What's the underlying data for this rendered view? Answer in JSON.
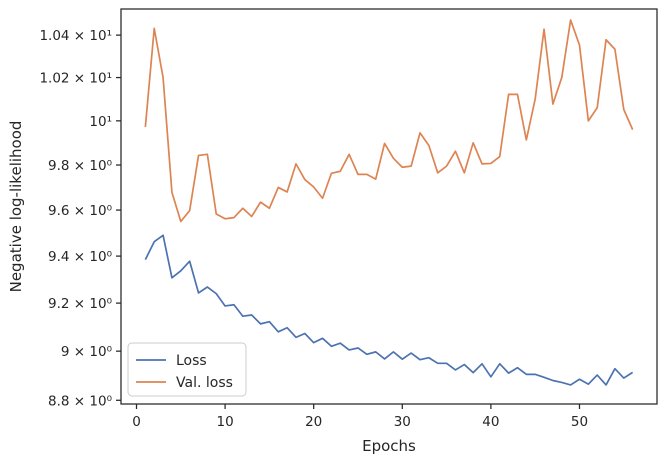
{
  "chart_data": {
    "type": "line",
    "xlabel": "Epochs",
    "ylabel": "Negative log-likelihood",
    "xlim": [
      -1.75,
      58.75
    ],
    "ylim": [
      8.785,
      10.525
    ],
    "yscale": "log",
    "grid": false,
    "legend_position": "lower-left",
    "x_ticks": [
      0,
      10,
      20,
      30,
      40,
      50
    ],
    "y_ticks": [
      {
        "value": 8.8,
        "label": "8.8 × 10⁰"
      },
      {
        "value": 9.0,
        "label": "9 × 10⁰"
      },
      {
        "value": 9.2,
        "label": "9.2 × 10⁰"
      },
      {
        "value": 9.4,
        "label": "9.4 × 10⁰"
      },
      {
        "value": 9.6,
        "label": "9.6 × 10⁰"
      },
      {
        "value": 9.8,
        "label": "9.8 × 10⁰"
      },
      {
        "value": 10.0,
        "label": "10¹"
      },
      {
        "value": 10.2,
        "label": "1.02 × 10¹"
      },
      {
        "value": 10.4,
        "label": "1.04 × 10¹"
      }
    ],
    "x": [
      1,
      2,
      3,
      4,
      5,
      6,
      7,
      8,
      9,
      10,
      11,
      12,
      13,
      14,
      15,
      16,
      17,
      18,
      19,
      20,
      21,
      22,
      23,
      24,
      25,
      26,
      27,
      28,
      29,
      30,
      31,
      32,
      33,
      34,
      35,
      36,
      37,
      38,
      39,
      40,
      41,
      42,
      43,
      44,
      45,
      46,
      47,
      48,
      49,
      50,
      51,
      52,
      53,
      54,
      55,
      56
    ],
    "series": [
      {
        "name": "Loss",
        "color": "#4c72b0",
        "values": [
          9.385,
          9.462,
          9.49,
          9.307,
          9.337,
          9.378,
          9.243,
          9.268,
          9.24,
          9.188,
          9.193,
          9.145,
          9.15,
          9.113,
          9.122,
          9.08,
          9.097,
          9.057,
          9.073,
          9.035,
          9.053,
          9.02,
          9.033,
          9.005,
          9.013,
          8.987,
          8.997,
          8.968,
          8.997,
          8.967,
          8.992,
          8.965,
          8.973,
          8.95,
          8.95,
          8.923,
          8.945,
          8.912,
          8.948,
          8.895,
          8.948,
          8.91,
          8.932,
          8.905,
          8.905,
          8.893,
          8.88,
          8.872,
          8.862,
          8.885,
          8.865,
          8.902,
          8.862,
          8.928,
          8.89,
          8.913
        ]
      },
      {
        "name": "Val. loss",
        "color": "#dd8452",
        "values": [
          9.972,
          10.432,
          10.2,
          9.678,
          9.55,
          9.598,
          9.843,
          9.848,
          9.583,
          9.562,
          9.567,
          9.608,
          9.572,
          9.635,
          9.608,
          9.7,
          9.68,
          9.805,
          9.735,
          9.702,
          9.652,
          9.763,
          9.772,
          9.848,
          9.758,
          9.758,
          9.737,
          9.897,
          9.83,
          9.79,
          9.795,
          9.945,
          9.888,
          9.765,
          9.795,
          9.862,
          9.765,
          9.9,
          9.805,
          9.807,
          9.838,
          10.122,
          10.122,
          9.913,
          10.1,
          10.428,
          10.077,
          10.2,
          10.472,
          10.353,
          10.0,
          10.06,
          10.378,
          10.333,
          10.052,
          9.96
        ]
      }
    ]
  }
}
